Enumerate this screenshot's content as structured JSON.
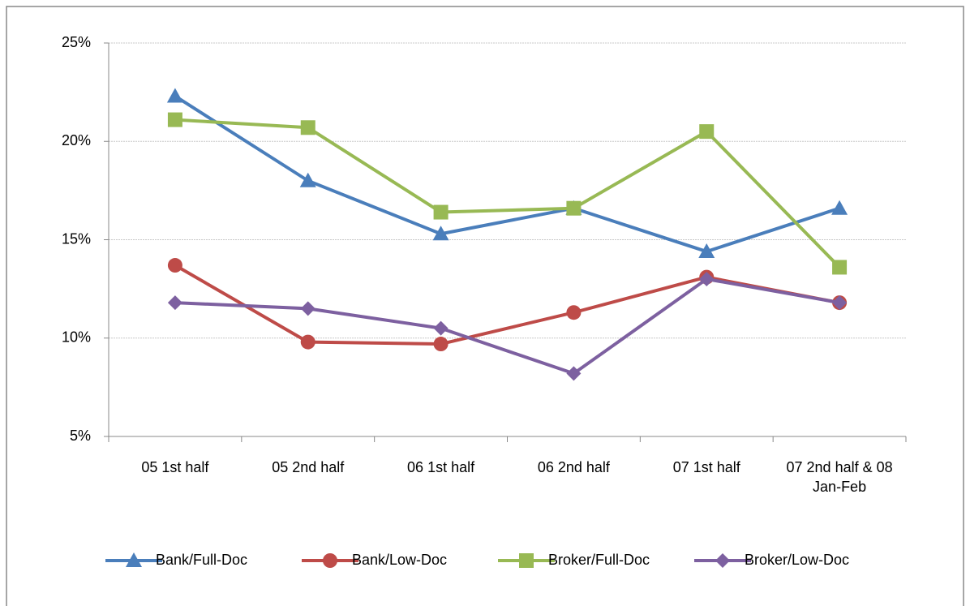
{
  "chart_data": {
    "type": "line",
    "categories": [
      "05 1st half",
      "05 2nd half",
      "06 1st half",
      "06 2nd half",
      "07 1st half",
      "07 2nd half & 08 Jan-Feb"
    ],
    "series": [
      {
        "name": "Bank/Full-Doc",
        "color": "#4a7ebb",
        "marker": "triangle",
        "values": [
          22.3,
          18.0,
          15.3,
          16.6,
          14.4,
          16.6
        ]
      },
      {
        "name": "Bank/Low-Doc",
        "color": "#be4b48",
        "marker": "circle",
        "values": [
          13.7,
          9.8,
          9.7,
          11.3,
          13.1,
          11.8
        ]
      },
      {
        "name": "Broker/Full-Doc",
        "color": "#98b954",
        "marker": "square",
        "values": [
          21.1,
          20.7,
          16.4,
          16.6,
          20.5,
          13.6
        ]
      },
      {
        "name": "Broker/Low-Doc",
        "color": "#7d60a0",
        "marker": "diamond",
        "values": [
          11.8,
          11.5,
          10.5,
          8.2,
          13.0,
          11.8
        ]
      }
    ],
    "ylim": [
      5,
      25
    ],
    "yticks": [
      {
        "value": 5,
        "label": "5%"
      },
      {
        "value": 10,
        "label": "10%"
      },
      {
        "value": 15,
        "label": "15%"
      },
      {
        "value": 20,
        "label": "20%"
      },
      {
        "value": 25,
        "label": "25%"
      }
    ],
    "grid": true,
    "legend": "bottom"
  }
}
